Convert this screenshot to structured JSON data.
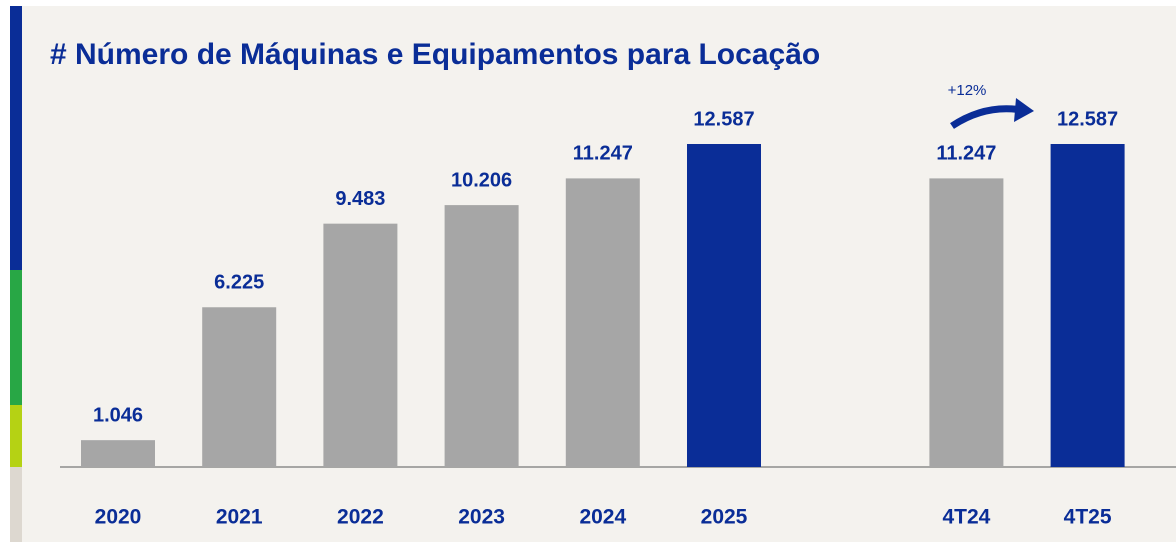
{
  "chart_data": {
    "type": "bar",
    "title": "# Número de Máquinas e Equipamentos para Locação",
    "categories": [
      "2020",
      "2021",
      "2022",
      "2023",
      "2024",
      "2025",
      "4T24",
      "4T25"
    ],
    "values": [
      1046,
      6225,
      9483,
      10206,
      11247,
      12587,
      11247,
      12587
    ],
    "value_labels": [
      "1.046",
      "6.225",
      "9.483",
      "10.206",
      "11.247",
      "12.587",
      "11.247",
      "12.587"
    ],
    "colors": [
      "#a6a6a6",
      "#a6a6a6",
      "#a6a6a6",
      "#a6a6a6",
      "#a6a6a6",
      "#0a2d97",
      "#a6a6a6",
      "#0a2d97"
    ],
    "annotation": "+12%"
  }
}
